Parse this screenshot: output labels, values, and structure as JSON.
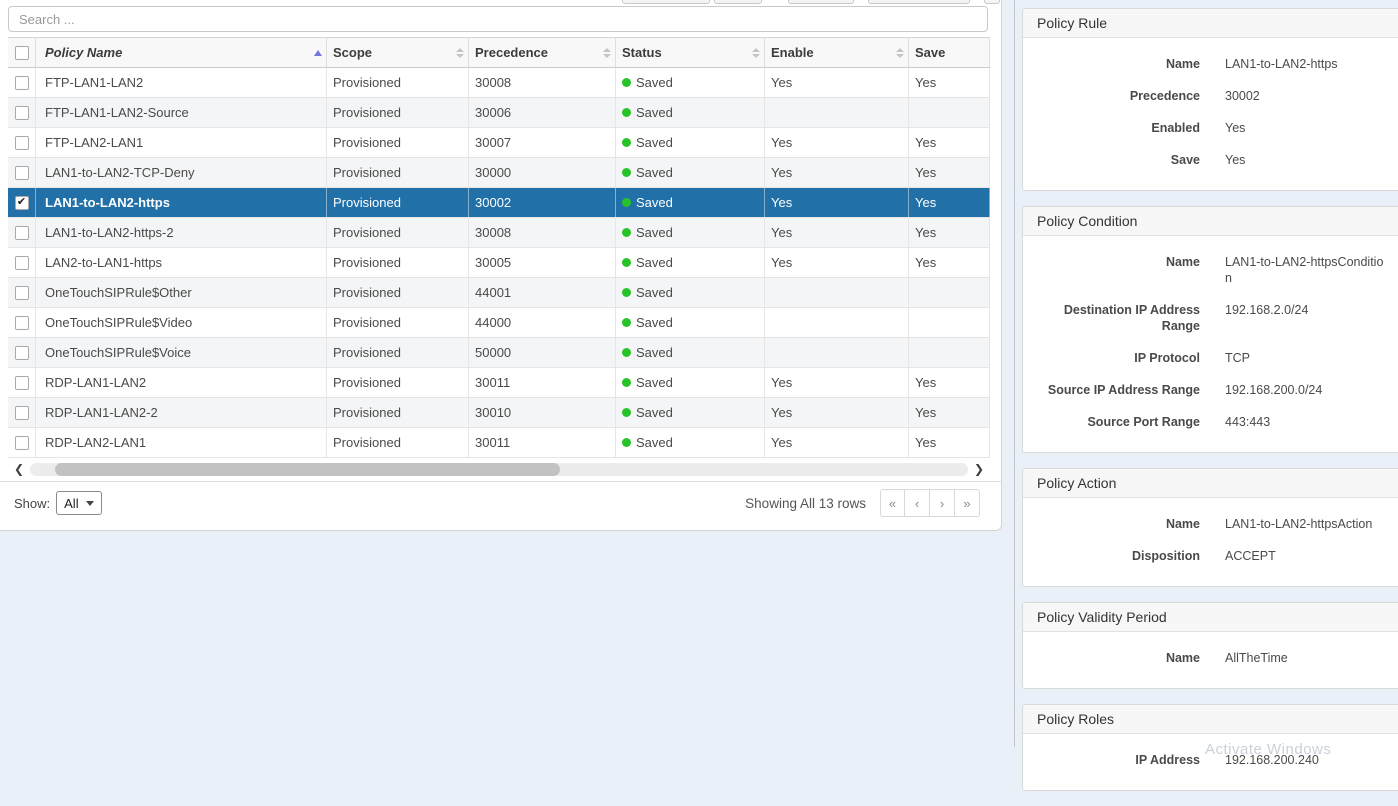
{
  "colors": {
    "selected_row": "#2170a8",
    "status_green": "#28c328",
    "sort_asc_arrow": "#7674dd",
    "page_background": "#eaf0f8"
  },
  "search": {
    "placeholder": "Search ..."
  },
  "table": {
    "columns": [
      {
        "label": "Policy Name",
        "sort": "asc"
      },
      {
        "label": "Scope",
        "sort": "both"
      },
      {
        "label": "Precedence",
        "sort": "both"
      },
      {
        "label": "Status",
        "sort": "both"
      },
      {
        "label": "Enable",
        "sort": "both"
      },
      {
        "label": "Save",
        "sort": "none"
      }
    ],
    "rows": [
      {
        "name": "FTP-LAN1-LAN2",
        "scope": "Provisioned",
        "precedence": "30008",
        "status": "Saved",
        "enable": "Yes",
        "save": "Yes",
        "checked": false,
        "selected": false
      },
      {
        "name": "FTP-LAN1-LAN2-Source",
        "scope": "Provisioned",
        "precedence": "30006",
        "status": "Saved",
        "enable": "",
        "save": "",
        "checked": false,
        "selected": false
      },
      {
        "name": "FTP-LAN2-LAN1",
        "scope": "Provisioned",
        "precedence": "30007",
        "status": "Saved",
        "enable": "Yes",
        "save": "Yes",
        "checked": false,
        "selected": false
      },
      {
        "name": "LAN1-to-LAN2-TCP-Deny",
        "scope": "Provisioned",
        "precedence": "30000",
        "status": "Saved",
        "enable": "Yes",
        "save": "Yes",
        "checked": false,
        "selected": false
      },
      {
        "name": "LAN1-to-LAN2-https",
        "scope": "Provisioned",
        "precedence": "30002",
        "status": "Saved",
        "enable": "Yes",
        "save": "Yes",
        "checked": true,
        "selected": true
      },
      {
        "name": "LAN1-to-LAN2-https-2",
        "scope": "Provisioned",
        "precedence": "30008",
        "status": "Saved",
        "enable": "Yes",
        "save": "Yes",
        "checked": false,
        "selected": false
      },
      {
        "name": "LAN2-to-LAN1-https",
        "scope": "Provisioned",
        "precedence": "30005",
        "status": "Saved",
        "enable": "Yes",
        "save": "Yes",
        "checked": false,
        "selected": false
      },
      {
        "name": "OneTouchSIPRule$Other",
        "scope": "Provisioned",
        "precedence": "44001",
        "status": "Saved",
        "enable": "",
        "save": "",
        "checked": false,
        "selected": false
      },
      {
        "name": "OneTouchSIPRule$Video",
        "scope": "Provisioned",
        "precedence": "44000",
        "status": "Saved",
        "enable": "",
        "save": "",
        "checked": false,
        "selected": false
      },
      {
        "name": "OneTouchSIPRule$Voice",
        "scope": "Provisioned",
        "precedence": "50000",
        "status": "Saved",
        "enable": "",
        "save": "",
        "checked": false,
        "selected": false
      },
      {
        "name": "RDP-LAN1-LAN2",
        "scope": "Provisioned",
        "precedence": "30011",
        "status": "Saved",
        "enable": "Yes",
        "save": "Yes",
        "checked": false,
        "selected": false
      },
      {
        "name": "RDP-LAN1-LAN2-2",
        "scope": "Provisioned",
        "precedence": "30010",
        "status": "Saved",
        "enable": "Yes",
        "save": "Yes",
        "checked": false,
        "selected": false
      },
      {
        "name": "RDP-LAN2-LAN1",
        "scope": "Provisioned",
        "precedence": "30011",
        "status": "Saved",
        "enable": "Yes",
        "save": "Yes",
        "checked": false,
        "selected": false
      }
    ],
    "footer": {
      "show_label": "Show:",
      "show_value": "All",
      "summary": "Showing All 13 rows",
      "pager": [
        "«",
        "‹",
        "›",
        "»"
      ]
    }
  },
  "details": {
    "sections": [
      {
        "title": "Policy Rule",
        "rows": [
          [
            "Name",
            "LAN1-to-LAN2-https"
          ],
          [
            "Precedence",
            "30002"
          ],
          [
            "Enabled",
            "Yes"
          ],
          [
            "Save",
            "Yes"
          ]
        ]
      },
      {
        "title": "Policy Condition",
        "rows": [
          [
            "Name",
            "LAN1-to-LAN2-httpsCondition"
          ],
          [
            "Destination IP Address Range",
            "192.168.2.0/24"
          ],
          [
            "IP Protocol",
            "TCP"
          ],
          [
            "Source IP Address Range",
            "192.168.200.0/24"
          ],
          [
            "Source Port Range",
            "443:443"
          ]
        ]
      },
      {
        "title": "Policy Action",
        "rows": [
          [
            "Name",
            "LAN1-to-LAN2-httpsAction"
          ],
          [
            "Disposition",
            "ACCEPT"
          ]
        ]
      },
      {
        "title": "Policy Validity Period",
        "rows": [
          [
            "Name",
            "AllTheTime"
          ]
        ]
      },
      {
        "title": "Policy Roles",
        "rows": [
          [
            "IP Address",
            "192.168.200.240"
          ]
        ]
      }
    ],
    "watermark": "Activate Windows"
  }
}
